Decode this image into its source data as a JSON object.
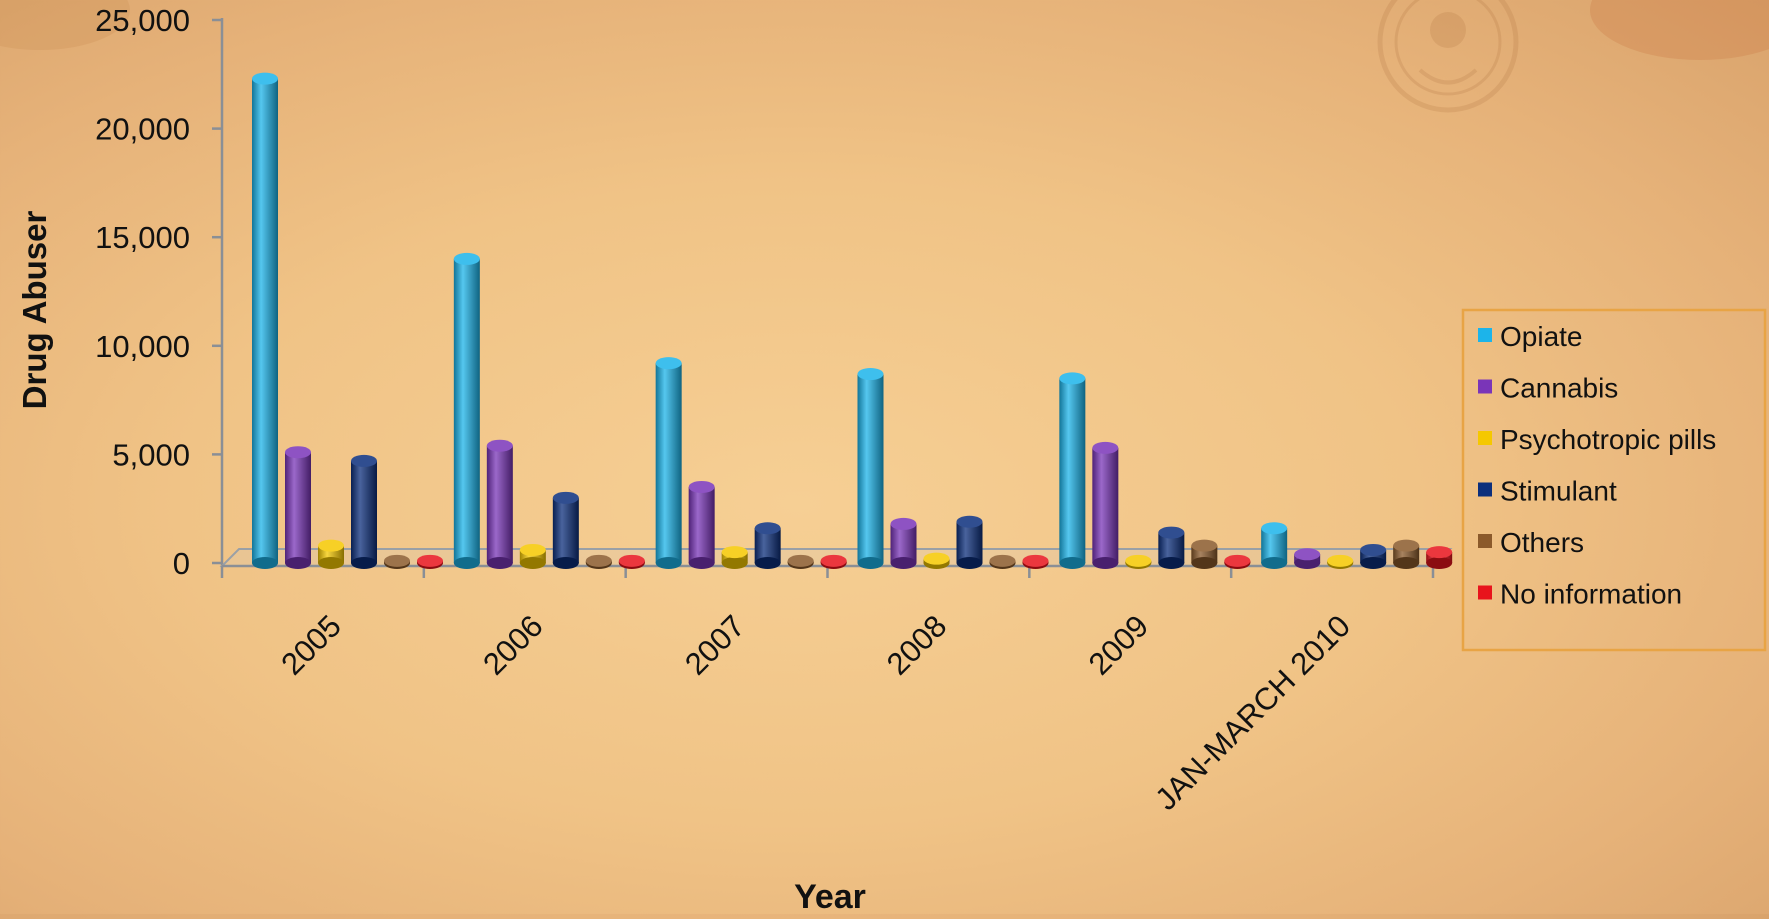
{
  "chart_data": {
    "type": "bar",
    "title": "",
    "xlabel": "Year",
    "ylabel": "Drug Abuser",
    "ylim": [
      0,
      25000
    ],
    "yticks": [
      0,
      5000,
      10000,
      15000,
      20000,
      25000
    ],
    "ytick_labels": [
      "0",
      "5,000",
      "10,000",
      "15,000",
      "20,000",
      "25,000"
    ],
    "categories": [
      "2005",
      "2006",
      "2007",
      "2008",
      "2009",
      "JAN-MARCH 2010"
    ],
    "series": [
      {
        "name": "Opiate",
        "color": "#1cb4ea",
        "values": [
          22300,
          14000,
          9200,
          8700,
          8500,
          1600
        ]
      },
      {
        "name": "Cannabis",
        "color": "#7a35b8",
        "values": [
          5100,
          5400,
          3500,
          1800,
          5300,
          400
        ]
      },
      {
        "name": "Psychotropic pills",
        "color": "#f5c800",
        "values": [
          800,
          600,
          500,
          200,
          100,
          100
        ]
      },
      {
        "name": "Stimulant",
        "color": "#0c2f7c",
        "values": [
          4700,
          3000,
          1600,
          1900,
          1400,
          600
        ]
      },
      {
        "name": "Others",
        "color": "#8b5a2b",
        "values": [
          100,
          100,
          100,
          100,
          800,
          800
        ]
      },
      {
        "name": "No information",
        "color": "#e8141c",
        "values": [
          100,
          100,
          100,
          100,
          100,
          500
        ]
      }
    ],
    "grid": false,
    "legend_position": "right"
  }
}
